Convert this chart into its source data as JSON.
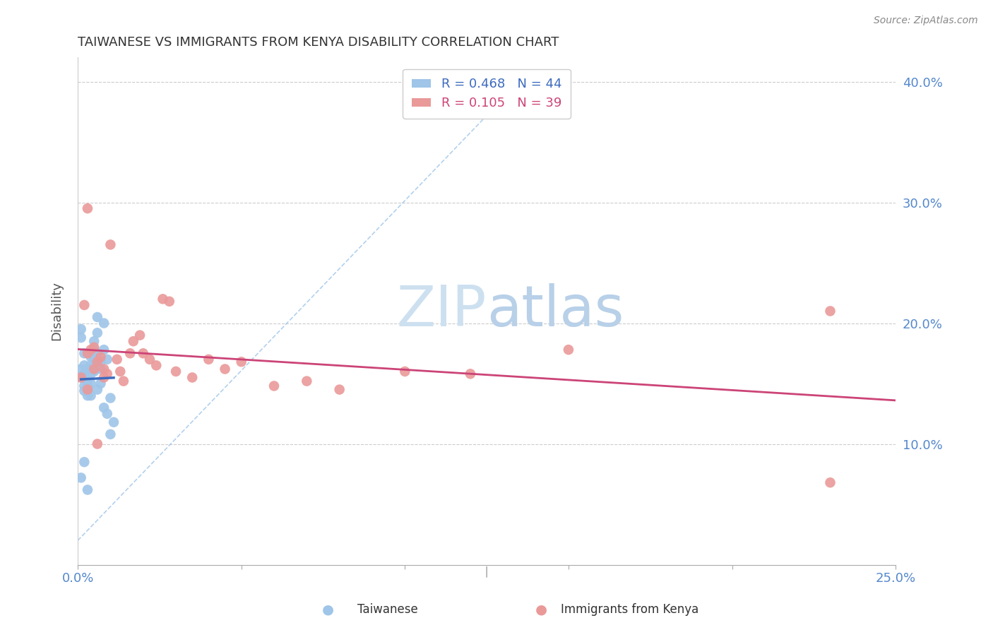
{
  "title": "TAIWANESE VS IMMIGRANTS FROM KENYA DISABILITY CORRELATION CHART",
  "source": "Source: ZipAtlas.com",
  "ylabel": "Disability",
  "xlabel_taiwanese": "Taiwanese",
  "xlabel_kenya": "Immigrants from Kenya",
  "xlim": [
    0.0,
    0.25
  ],
  "ylim": [
    0.0,
    0.42
  ],
  "R_taiwanese": 0.468,
  "N_taiwanese": 44,
  "R_kenya": 0.105,
  "N_kenya": 39,
  "taiwanese_color": "#9fc5e8",
  "kenya_color": "#ea9999",
  "trend_taiwanese_color": "#3d6bbf",
  "trend_kenya_color": "#cc4477",
  "diagonal_color": "#9fc5e8",
  "watermark_zip_color": "#c9dff2",
  "watermark_atlas_color": "#b8d0e8",
  "background": "#ffffff",
  "taiwanese_x": [
    0.001,
    0.001,
    0.001,
    0.001,
    0.002,
    0.002,
    0.002,
    0.002,
    0.002,
    0.002,
    0.003,
    0.003,
    0.003,
    0.003,
    0.003,
    0.003,
    0.003,
    0.003,
    0.004,
    0.004,
    0.004,
    0.004,
    0.004,
    0.005,
    0.005,
    0.005,
    0.005,
    0.005,
    0.006,
    0.006,
    0.006,
    0.006,
    0.007,
    0.007,
    0.007,
    0.008,
    0.008,
    0.008,
    0.009,
    0.009,
    0.01,
    0.01,
    0.011,
    0.001
  ],
  "taiwanese_y": [
    0.195,
    0.188,
    0.162,
    0.072,
    0.175,
    0.165,
    0.158,
    0.148,
    0.144,
    0.085,
    0.162,
    0.158,
    0.155,
    0.152,
    0.148,
    0.144,
    0.14,
    0.062,
    0.172,
    0.165,
    0.158,
    0.15,
    0.14,
    0.185,
    0.178,
    0.17,
    0.165,
    0.16,
    0.192,
    0.205,
    0.175,
    0.145,
    0.168,
    0.162,
    0.15,
    0.2,
    0.178,
    0.13,
    0.17,
    0.125,
    0.138,
    0.108,
    0.118,
    0.155
  ],
  "kenya_x": [
    0.001,
    0.002,
    0.003,
    0.003,
    0.004,
    0.005,
    0.005,
    0.006,
    0.007,
    0.008,
    0.009,
    0.01,
    0.012,
    0.013,
    0.014,
    0.016,
    0.017,
    0.019,
    0.02,
    0.022,
    0.024,
    0.026,
    0.028,
    0.03,
    0.035,
    0.04,
    0.045,
    0.05,
    0.06,
    0.07,
    0.08,
    0.1,
    0.12,
    0.003,
    0.006,
    0.008,
    0.23,
    0.23,
    0.15
  ],
  "kenya_y": [
    0.155,
    0.215,
    0.175,
    0.295,
    0.178,
    0.18,
    0.162,
    0.168,
    0.172,
    0.162,
    0.158,
    0.265,
    0.17,
    0.16,
    0.152,
    0.175,
    0.185,
    0.19,
    0.175,
    0.17,
    0.165,
    0.22,
    0.218,
    0.16,
    0.155,
    0.17,
    0.162,
    0.168,
    0.148,
    0.152,
    0.145,
    0.16,
    0.158,
    0.145,
    0.1,
    0.155,
    0.21,
    0.068,
    0.178
  ]
}
